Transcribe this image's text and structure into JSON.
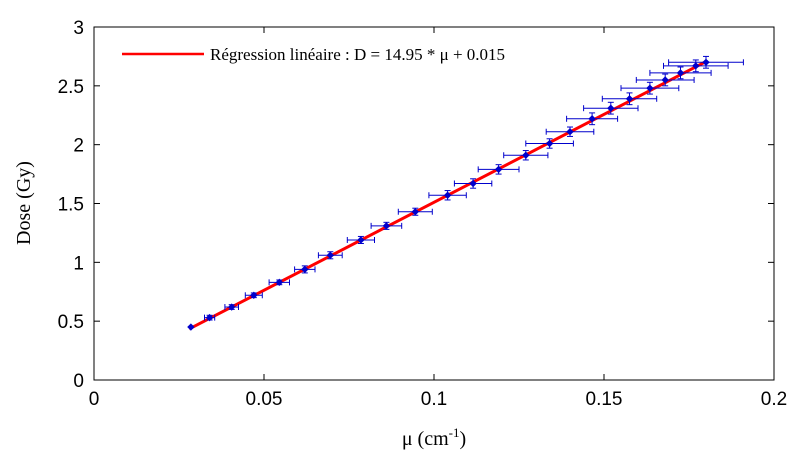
{
  "chart_data": {
    "type": "scatter",
    "xlabel": "μ (cm",
    "xlabel_sup": "-1",
    "xlabel_end": ")",
    "ylabel": "Dose (Gy)",
    "xlim": [
      0,
      0.2
    ],
    "ylim": [
      0,
      3
    ],
    "xticks": [
      0,
      0.05,
      0.1,
      0.15,
      0.2
    ],
    "xtick_labels": [
      "0",
      "0.05",
      "0.1",
      "0.15",
      "0.2"
    ],
    "yticks": [
      0,
      0.5,
      1,
      1.5,
      2,
      2.5,
      3
    ],
    "ytick_labels": [
      "0",
      "0.5",
      "1",
      "1.5",
      "2",
      "2.5",
      "3"
    ],
    "grid": false,
    "legend": {
      "placement": "top-left",
      "entries": [
        {
          "label": "Régression linéaire : D = 14.95 * μ + 0.015",
          "color": "#ff0000"
        }
      ]
    },
    "fit_line": {
      "slope": 14.95,
      "intercept": 0.015,
      "x_range": [
        0.028,
        0.18
      ],
      "color": "#ff0000"
    },
    "series": [
      {
        "color": "#0000cc",
        "points": [
          {
            "x": 0.0285,
            "y": 0.45,
            "xerr": 0.0,
            "yerr": 0.0
          },
          {
            "x": 0.034,
            "y": 0.53,
            "xerr": 0.0015,
            "yerr": 0.02
          },
          {
            "x": 0.0405,
            "y": 0.62,
            "xerr": 0.002,
            "yerr": 0.02
          },
          {
            "x": 0.047,
            "y": 0.72,
            "xerr": 0.0025,
            "yerr": 0.02
          },
          {
            "x": 0.0545,
            "y": 0.83,
            "xerr": 0.003,
            "yerr": 0.02
          },
          {
            "x": 0.062,
            "y": 0.94,
            "xerr": 0.003,
            "yerr": 0.03
          },
          {
            "x": 0.0695,
            "y": 1.06,
            "xerr": 0.0035,
            "yerr": 0.03
          },
          {
            "x": 0.0785,
            "y": 1.19,
            "xerr": 0.004,
            "yerr": 0.03
          },
          {
            "x": 0.086,
            "y": 1.31,
            "xerr": 0.0045,
            "yerr": 0.03
          },
          {
            "x": 0.0945,
            "y": 1.43,
            "xerr": 0.005,
            "yerr": 0.03
          },
          {
            "x": 0.104,
            "y": 1.57,
            "xerr": 0.0055,
            "yerr": 0.04
          },
          {
            "x": 0.1115,
            "y": 1.67,
            "xerr": 0.0055,
            "yerr": 0.04
          },
          {
            "x": 0.119,
            "y": 1.79,
            "xerr": 0.006,
            "yerr": 0.04
          },
          {
            "x": 0.127,
            "y": 1.91,
            "xerr": 0.0065,
            "yerr": 0.04
          },
          {
            "x": 0.134,
            "y": 2.01,
            "xerr": 0.007,
            "yerr": 0.04
          },
          {
            "x": 0.14,
            "y": 2.11,
            "xerr": 0.007,
            "yerr": 0.04
          },
          {
            "x": 0.1465,
            "y": 2.22,
            "xerr": 0.0075,
            "yerr": 0.05
          },
          {
            "x": 0.152,
            "y": 2.31,
            "xerr": 0.008,
            "yerr": 0.05
          },
          {
            "x": 0.1575,
            "y": 2.39,
            "xerr": 0.008,
            "yerr": 0.05
          },
          {
            "x": 0.1635,
            "y": 2.48,
            "xerr": 0.0085,
            "yerr": 0.05
          },
          {
            "x": 0.168,
            "y": 2.55,
            "xerr": 0.0085,
            "yerr": 0.05
          },
          {
            "x": 0.1725,
            "y": 2.61,
            "xerr": 0.009,
            "yerr": 0.05
          },
          {
            "x": 0.177,
            "y": 2.67,
            "xerr": 0.0095,
            "yerr": 0.05
          },
          {
            "x": 0.18,
            "y": 2.7,
            "xerr": 0.011,
            "yerr": 0.05
          }
        ]
      }
    ]
  }
}
